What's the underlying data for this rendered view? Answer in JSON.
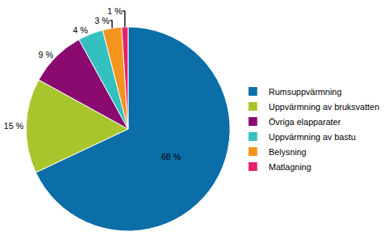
{
  "chart_data": {
    "type": "pie",
    "categories": [
      "Rumsuppvärmning",
      "Uppvärmning av bruksvatten",
      "Övriga elapparater",
      "Uppvärmning av bastu",
      "Belysning",
      "Matlagning"
    ],
    "values": [
      68,
      15,
      9,
      4,
      3,
      1
    ],
    "value_labels": [
      "68 %",
      "15 %",
      "9 %",
      "4 %",
      "3 %",
      "1 %"
    ],
    "colors": [
      "#0b6ea8",
      "#a8c62c",
      "#8a0a70",
      "#33c0bf",
      "#f3941f",
      "#e51f6a"
    ],
    "data_labels": true,
    "legend": "right"
  }
}
